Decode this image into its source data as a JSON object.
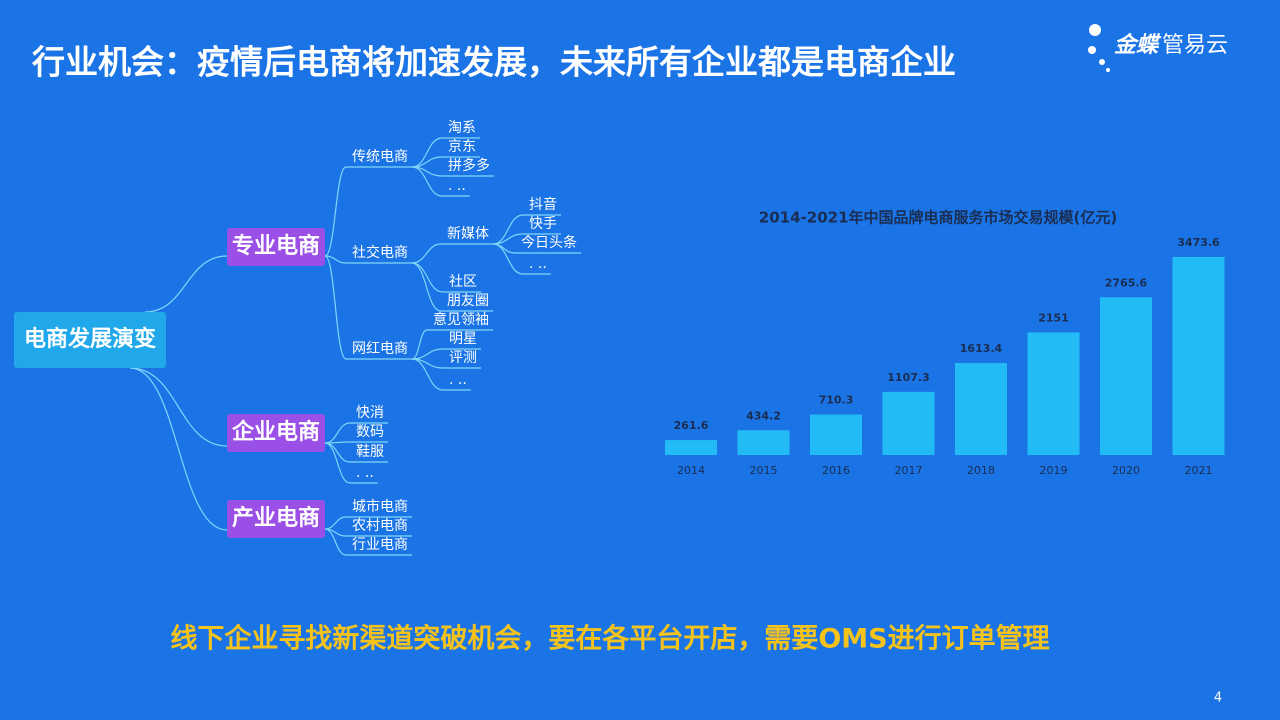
{
  "header": {
    "title": "行业机会：疫情后电商将加速发展，未来所有企业都是电商企业",
    "logo": {
      "primary": "金蝶",
      "secondary": "管易云"
    }
  },
  "mindmap": {
    "root": "电商发展演变",
    "branches": [
      {
        "label": "专业电商",
        "children": [
          {
            "label": "传统电商",
            "children": [
              "淘系",
              "京东",
              "拼多多",
              ". .."
            ]
          },
          {
            "label": "社交电商",
            "children": [
              {
                "label": "新媒体",
                "children": [
                  "抖音",
                  "快手",
                  "今日头条",
                  ". .."
                ]
              },
              "社区",
              "朋友圈"
            ]
          },
          {
            "label": "网红电商",
            "children": [
              "意见领袖",
              "明星",
              "评测",
              ". .."
            ]
          }
        ]
      },
      {
        "label": "企业电商",
        "children": [
          "快消",
          "数码",
          "鞋服",
          ". .."
        ]
      },
      {
        "label": "产业电商",
        "children": [
          "城市电商",
          "农村电商",
          "行业电商"
        ]
      }
    ]
  },
  "chart_data": {
    "type": "bar",
    "title": "2014-2021年中国品牌电商服务市场交易规模(亿元)",
    "categories": [
      "2014",
      "2015",
      "2016",
      "2017",
      "2018",
      "2019",
      "2020",
      "2021"
    ],
    "values": [
      261.6,
      434.2,
      710.3,
      1107.3,
      1613.4,
      2151,
      2765.6,
      3473.6
    ],
    "color": "#22bbf6"
  },
  "footer": {
    "message": "线下企业寻找新渠道突破机会，要在各平台开店，需要OMS进行订单管理",
    "page": "4"
  }
}
